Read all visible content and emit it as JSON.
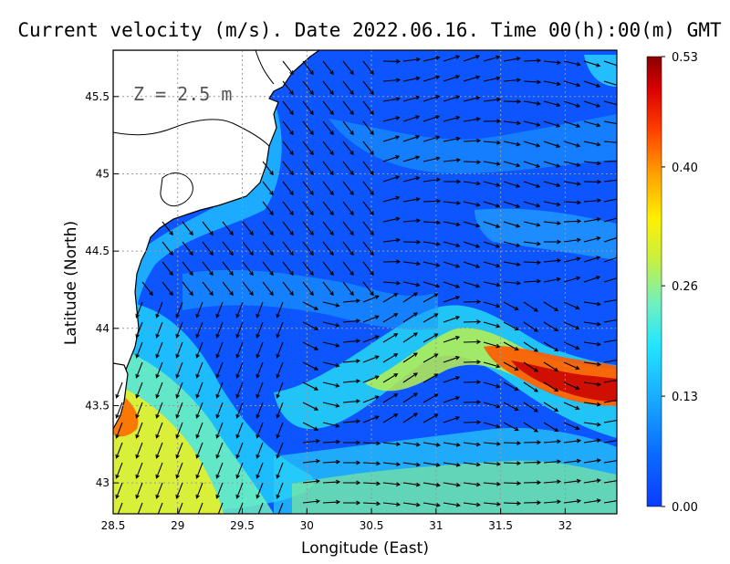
{
  "chart_data": {
    "type": "heatmap",
    "title": "Current velocity (m/s). Date 2022.06.16. Time 00(h):00(m) GMT",
    "xlabel": "Longitude (East)",
    "ylabel": "Latitude (North)",
    "annotation": "Z = 2.5 m",
    "xlim": [
      28.5,
      32.4
    ],
    "ylim": [
      42.8,
      45.8
    ],
    "xticks": [
      28.5,
      29,
      29.5,
      30,
      30.5,
      31,
      31.5,
      32
    ],
    "xtick_labels": [
      "28.5",
      "29",
      "29.5",
      "30",
      "30.5",
      "31",
      "31.5",
      "32"
    ],
    "yticks": [
      43,
      43.5,
      44,
      44.5,
      45,
      45.5
    ],
    "ytick_labels": [
      "43",
      "43.5",
      "44",
      "44.5",
      "45",
      "45.5"
    ],
    "grid": true,
    "colorbar": {
      "min": 0.0,
      "max": 0.53,
      "ticks": [
        0.0,
        0.13,
        0.26,
        0.4,
        0.53
      ],
      "tick_labels": [
        "0.00",
        "0.13",
        "0.26",
        "0.40",
        "0.53"
      ],
      "colormap": "jet",
      "placement": "right"
    },
    "colors": {
      "land": "#ffffff",
      "coastline": "#000000",
      "arrows": "#000000",
      "grid": "#999999"
    }
  }
}
